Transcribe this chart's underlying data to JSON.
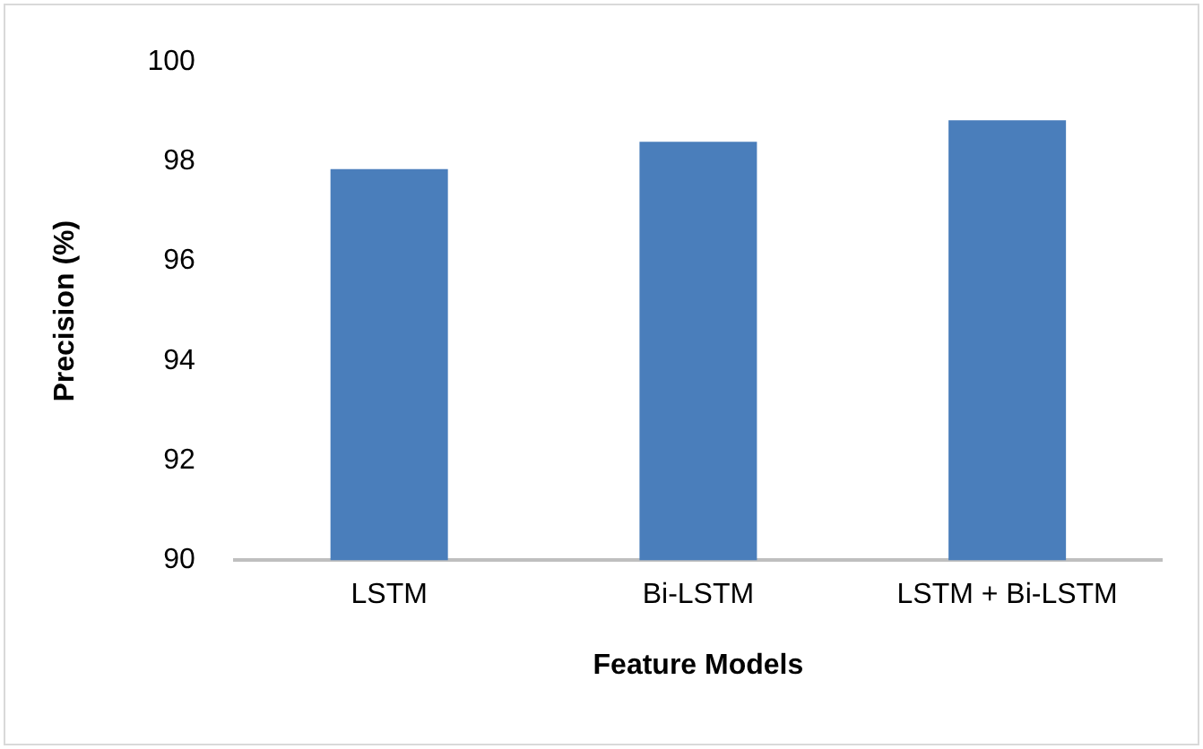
{
  "chart_data": {
    "type": "bar",
    "xlabel": "Feature Models",
    "ylabel": "Precision (%)",
    "categories": [
      "LSTM",
      "Bi-LSTM",
      "LSTM + Bi-LSTM"
    ],
    "values": [
      97.85,
      98.4,
      98.83
    ],
    "color": "#4a7ebb",
    "ylim": [
      90,
      100
    ],
    "yticks": [
      90,
      92,
      94,
      96,
      98,
      100
    ],
    "grid": false,
    "legend": false
  }
}
